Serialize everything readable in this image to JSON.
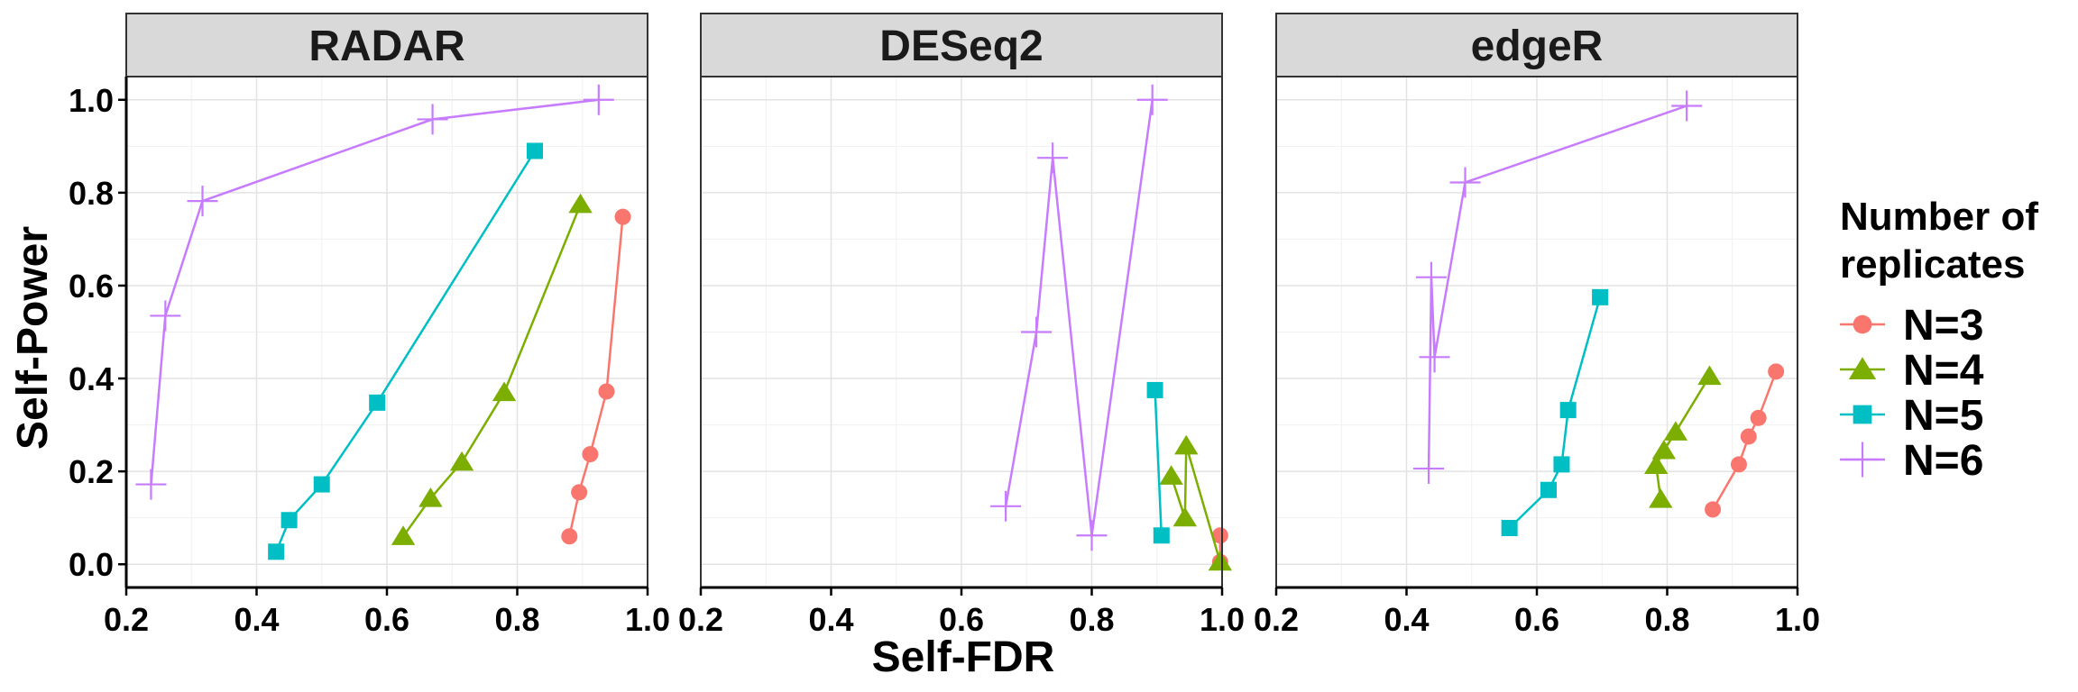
{
  "chart_data": {
    "type": "line",
    "xlabel": "Self-FDR",
    "ylabel": "Self-Power",
    "xlim": [
      0.2,
      1.0
    ],
    "ylim": [
      -0.05,
      1.05
    ],
    "x_ticks": [
      0.2,
      0.4,
      0.6,
      0.8,
      1.0
    ],
    "x_tick_labels": [
      "0.2",
      "0.4",
      "0.6",
      "0.8",
      "1.0"
    ],
    "y_ticks": [
      0.0,
      0.2,
      0.4,
      0.6,
      0.8,
      1.0
    ],
    "y_tick_labels": [
      "0.0",
      "0.2",
      "0.4",
      "0.6",
      "0.8",
      "1.0"
    ],
    "grid": true,
    "legend": {
      "title_lines": [
        "Number of",
        "replicates"
      ],
      "placement": "right"
    },
    "series_styles": [
      {
        "name": "N=3",
        "color": "#F8766D",
        "marker": "circle"
      },
      {
        "name": "N=4",
        "color": "#7CAE00",
        "marker": "triangle"
      },
      {
        "name": "N=5",
        "color": "#00BFC4",
        "marker": "square"
      },
      {
        "name": "N=6",
        "color": "#C77CFF",
        "marker": "plus"
      }
    ],
    "panels": [
      {
        "title": "RADAR",
        "series": [
          {
            "name": "N=3",
            "points": [
              [
                0.88,
                0.06
              ],
              [
                0.895,
                0.155
              ],
              [
                0.912,
                0.237
              ],
              [
                0.937,
                0.372
              ],
              [
                0.962,
                0.748
              ]
            ]
          },
          {
            "name": "N=4",
            "points": [
              [
                0.625,
                0.06
              ],
              [
                0.667,
                0.142
              ],
              [
                0.715,
                0.22
              ],
              [
                0.78,
                0.37
              ],
              [
                0.897,
                0.775
              ]
            ]
          },
          {
            "name": "N=5",
            "points": [
              [
                0.43,
                0.027
              ],
              [
                0.45,
                0.095
              ],
              [
                0.5,
                0.172
              ],
              [
                0.585,
                0.348
              ],
              [
                0.827,
                0.89
              ]
            ]
          },
          {
            "name": "N=6",
            "points": [
              [
                0.238,
                0.172
              ],
              [
                0.26,
                0.535
              ],
              [
                0.317,
                0.782
              ],
              [
                0.67,
                0.958
              ],
              [
                0.925,
                1.0
              ]
            ]
          }
        ]
      },
      {
        "title": "DESeq2",
        "series": [
          {
            "name": "N=3",
            "points": [
              [
                0.997,
                0.062
              ],
              [
                0.997,
                0.005
              ]
            ]
          },
          {
            "name": "N=4",
            "points": [
              [
                0.922,
                0.19
              ],
              [
                0.943,
                0.1
              ],
              [
                0.945,
                0.255
              ],
              [
                0.997,
                0.005
              ]
            ]
          },
          {
            "name": "N=5",
            "points": [
              [
                0.897,
                0.375
              ],
              [
                0.907,
                0.062
              ]
            ]
          },
          {
            "name": "N=6",
            "points": [
              [
                0.668,
                0.125
              ],
              [
                0.715,
                0.5
              ],
              [
                0.74,
                0.875
              ],
              [
                0.8,
                0.062
              ],
              [
                0.893,
                1.0
              ]
            ]
          }
        ]
      },
      {
        "title": "edgeR",
        "series": [
          {
            "name": "N=3",
            "points": [
              [
                0.87,
                0.118
              ],
              [
                0.91,
                0.215
              ],
              [
                0.925,
                0.275
              ],
              [
                0.94,
                0.315
              ],
              [
                0.967,
                0.415
              ]
            ]
          },
          {
            "name": "N=4",
            "points": [
              [
                0.79,
                0.14
              ],
              [
                0.783,
                0.213
              ],
              [
                0.795,
                0.245
              ],
              [
                0.813,
                0.285
              ],
              [
                0.865,
                0.405
              ]
            ]
          },
          {
            "name": "N=5",
            "points": [
              [
                0.558,
                0.078
              ],
              [
                0.618,
                0.16
              ],
              [
                0.638,
                0.215
              ],
              [
                0.648,
                0.332
              ],
              [
                0.697,
                0.575
              ]
            ]
          },
          {
            "name": "N=6",
            "points": [
              [
                0.434,
                0.206
              ],
              [
                0.438,
                0.618
              ],
              [
                0.443,
                0.446
              ],
              [
                0.49,
                0.822
              ],
              [
                0.83,
                0.987
              ]
            ]
          }
        ]
      }
    ]
  }
}
